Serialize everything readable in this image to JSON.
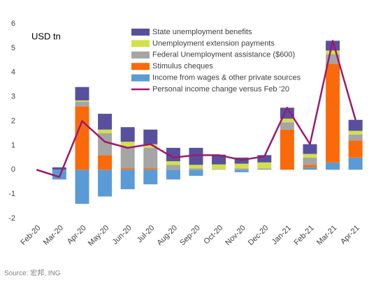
{
  "chart_data": {
    "type": "bar",
    "unit_label": "USD tn",
    "source": "Source: 宏邦, ING",
    "categories": [
      "Feb-20",
      "Mar-20",
      "Apr-20",
      "May-20",
      "Jun-20",
      "Jul-20",
      "Aug-20",
      "Sep-20",
      "Oct-20",
      "Nov-20",
      "Dec-20",
      "Jan-21",
      "Feb-21",
      "Mar-21",
      "Apr-21"
    ],
    "series": [
      {
        "name": "Income from wages & other private sources",
        "color": "#5b9bd5",
        "values": [
          0,
          -0.4,
          -1.4,
          -1.1,
          -0.8,
          -0.6,
          -0.4,
          -0.25,
          0,
          -0.1,
          0,
          0,
          0.1,
          0.3,
          0.5
        ]
      },
      {
        "name": "Stimulus cheques",
        "color": "#fa6a0a",
        "values": [
          0,
          0,
          2.6,
          0.6,
          0.05,
          0.05,
          0,
          0,
          0,
          0,
          0,
          1.65,
          0.1,
          4.05,
          0.7
        ]
      },
      {
        "name": "Federal Unemployment assistance ($600)",
        "color": "#a5a5a5",
        "values": [
          0,
          0,
          0.2,
          0.9,
          0.9,
          0.85,
          0.2,
          0.05,
          0.02,
          0.05,
          0.05,
          0.3,
          0.3,
          0.4,
          0.25
        ]
      },
      {
        "name": "Unemployment extension payments",
        "color": "#d4e04a",
        "values": [
          0,
          0,
          0.05,
          0.15,
          0.2,
          0.15,
          0.15,
          0.15,
          0.2,
          0.2,
          0.25,
          0.15,
          0.15,
          0.15,
          0.15
        ]
      },
      {
        "name": "State unemployment benefits",
        "color": "#58509e",
        "values": [
          0,
          0.1,
          0.55,
          0.65,
          0.6,
          0.6,
          0.55,
          0.7,
          0.4,
          0.25,
          0.3,
          0.45,
          0.4,
          0.4,
          0.45
        ]
      },
      {
        "name": "Personal income change versus Feb '20",
        "color": "#9c1a6e",
        "type": "line",
        "values": [
          0,
          -0.3,
          2.0,
          1.15,
          0.9,
          1.05,
          0.5,
          0.6,
          0.6,
          0.4,
          0.55,
          2.55,
          1.05,
          5.3,
          2.05
        ]
      }
    ],
    "ylim": [
      -2,
      6
    ],
    "yticks": [
      -2,
      -1,
      0,
      1,
      2,
      3,
      4,
      5,
      6
    ],
    "grid": false
  }
}
